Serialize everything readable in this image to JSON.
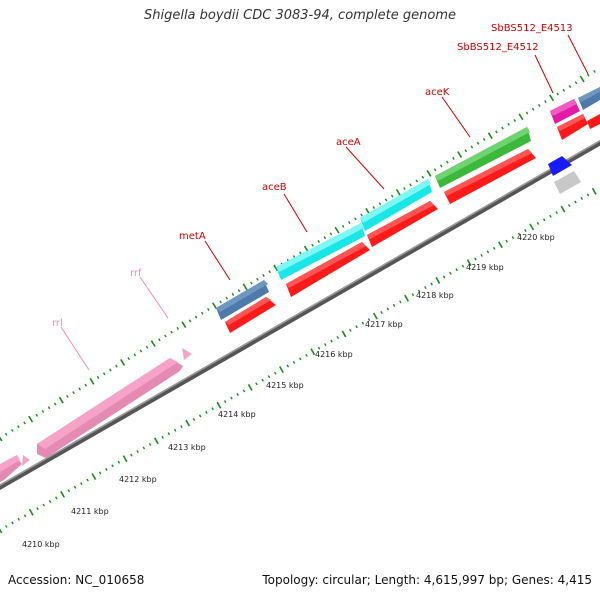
{
  "title": "Shigella boydii CDC 3083-94, complete genome",
  "footer": {
    "accession": "Accession: NC_010658",
    "summary": "Topology: circular; Length: 4,615,997 bp; Genes: 4,415"
  },
  "scale_labels": [
    "4210 kbp",
    "4211 kbp",
    "4212 kbp",
    "4213 kbp",
    "4214 kbp",
    "4215 kbp",
    "4216 kbp",
    "4217 kbp",
    "4218 kbp",
    "4219 kbp",
    "4220 kbp"
  ],
  "genes": {
    "rrl_a": "rrl",
    "rrf": "rrf",
    "metA": "metA",
    "aceB": "aceB",
    "aceA": "aceA",
    "aceK": "aceK",
    "e4512": "SbBS512_E4512",
    "e4513": "SbBS512_E4513"
  },
  "colors": {
    "pink_feature": "#f5a3c8",
    "blue_feature": "#4d7aa8",
    "cyan_feature": "#19f0f0",
    "green_feature": "#3cb83c",
    "red_feature": "#ff1a1a",
    "magenta_feature": "#e21aa6",
    "dark_blue_feature": "#1a1aff",
    "grey_feature": "#c8c8c8",
    "label_red": "#cc0000",
    "label_pink": "#f08cbc",
    "tick_green": "#1a8a1a"
  }
}
